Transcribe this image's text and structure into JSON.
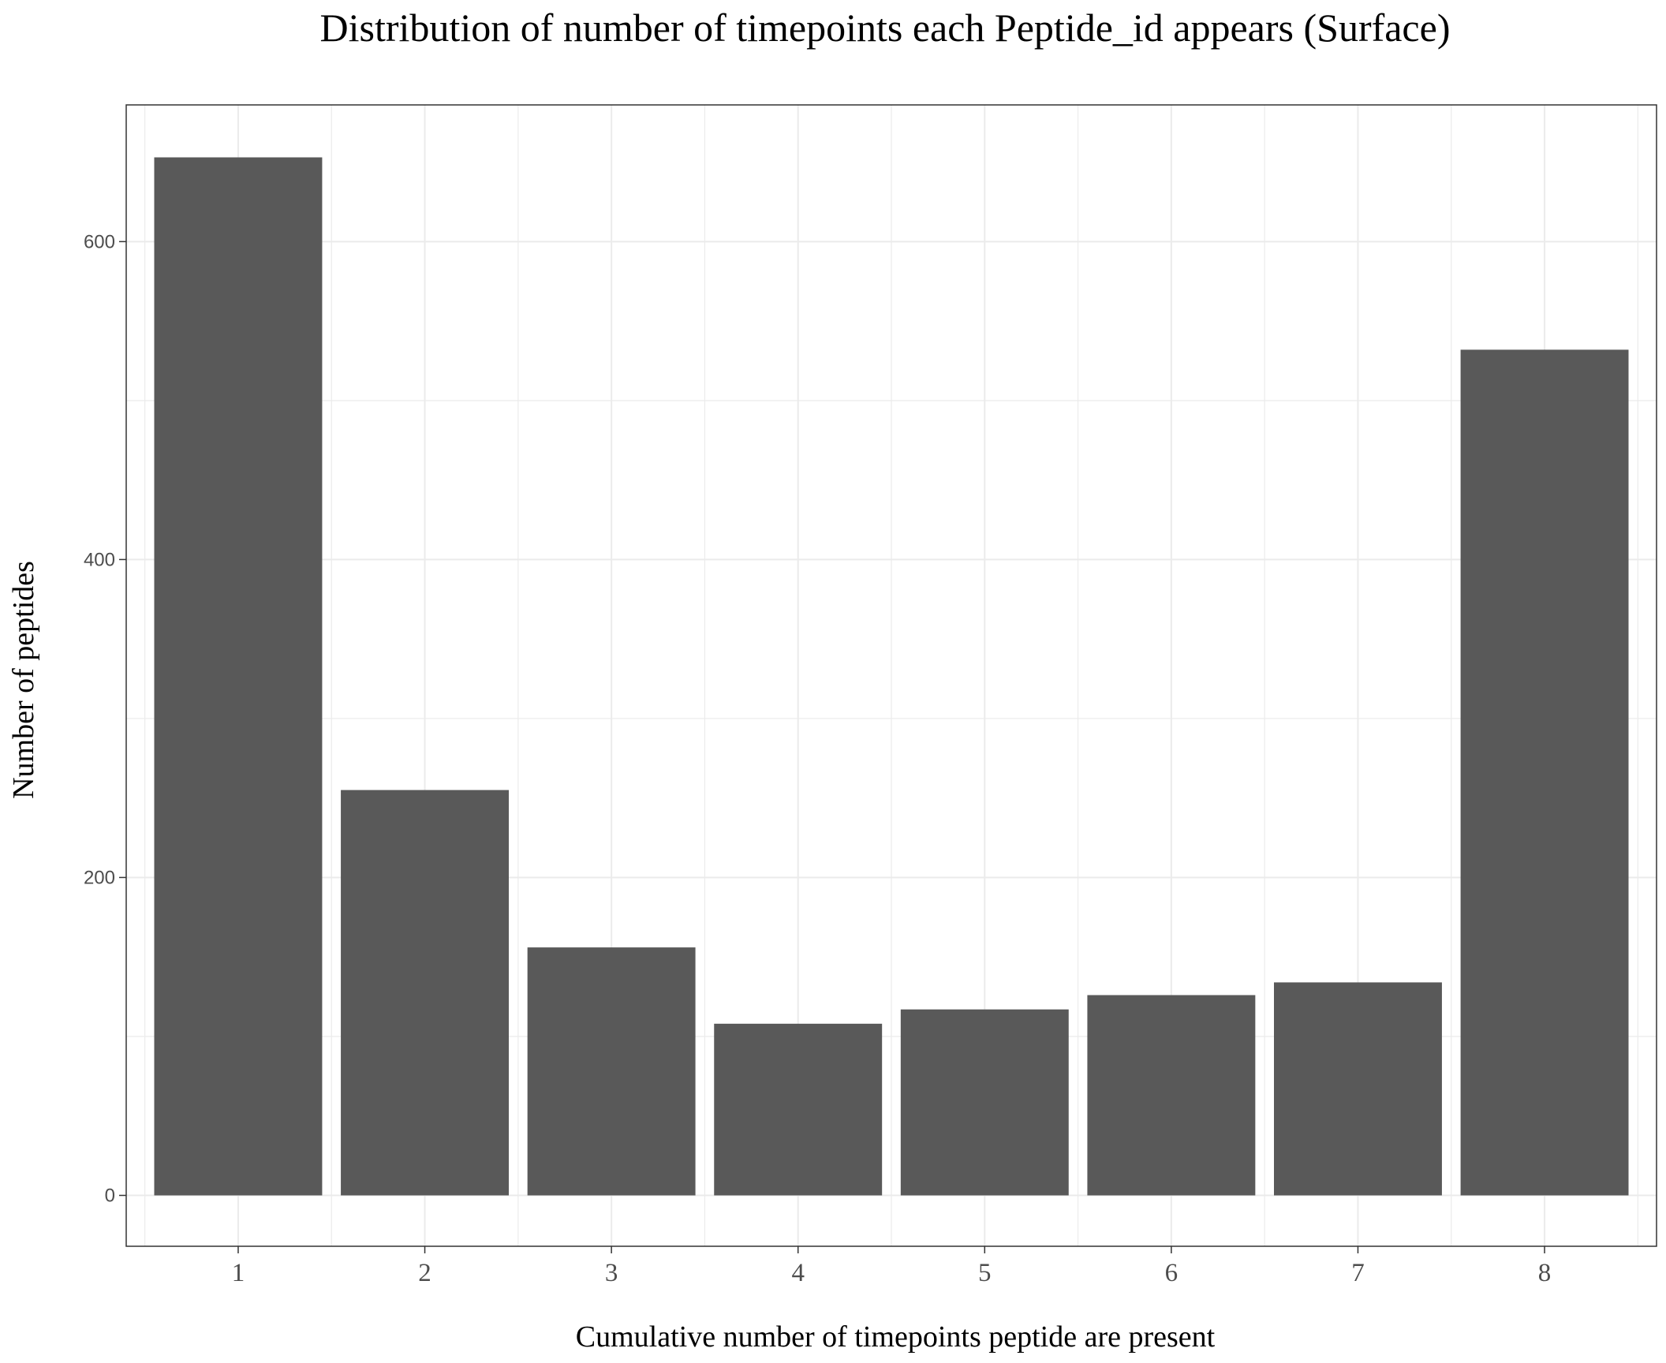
{
  "chart_data": {
    "type": "bar",
    "title": "Distribution of number of timepoints each Peptide_id appears (Surface)",
    "xlabel": "Cumulative number of timepoints peptide are present",
    "ylabel": "Number of peptides",
    "categories": [
      "1",
      "2",
      "3",
      "4",
      "5",
      "6",
      "7",
      "8"
    ],
    "values": [
      653,
      255,
      156,
      108,
      117,
      126,
      134,
      532
    ],
    "ylim": [
      -32,
      686
    ],
    "yticks": [
      0,
      200,
      400,
      600
    ],
    "yticks_minor": [
      100,
      300,
      500
    ],
    "grid": true,
    "bar_color": "#595959",
    "grid_color": "#ebebeb",
    "panel_border_color": "#333333",
    "tick_label_color": "#4d4d4d"
  }
}
